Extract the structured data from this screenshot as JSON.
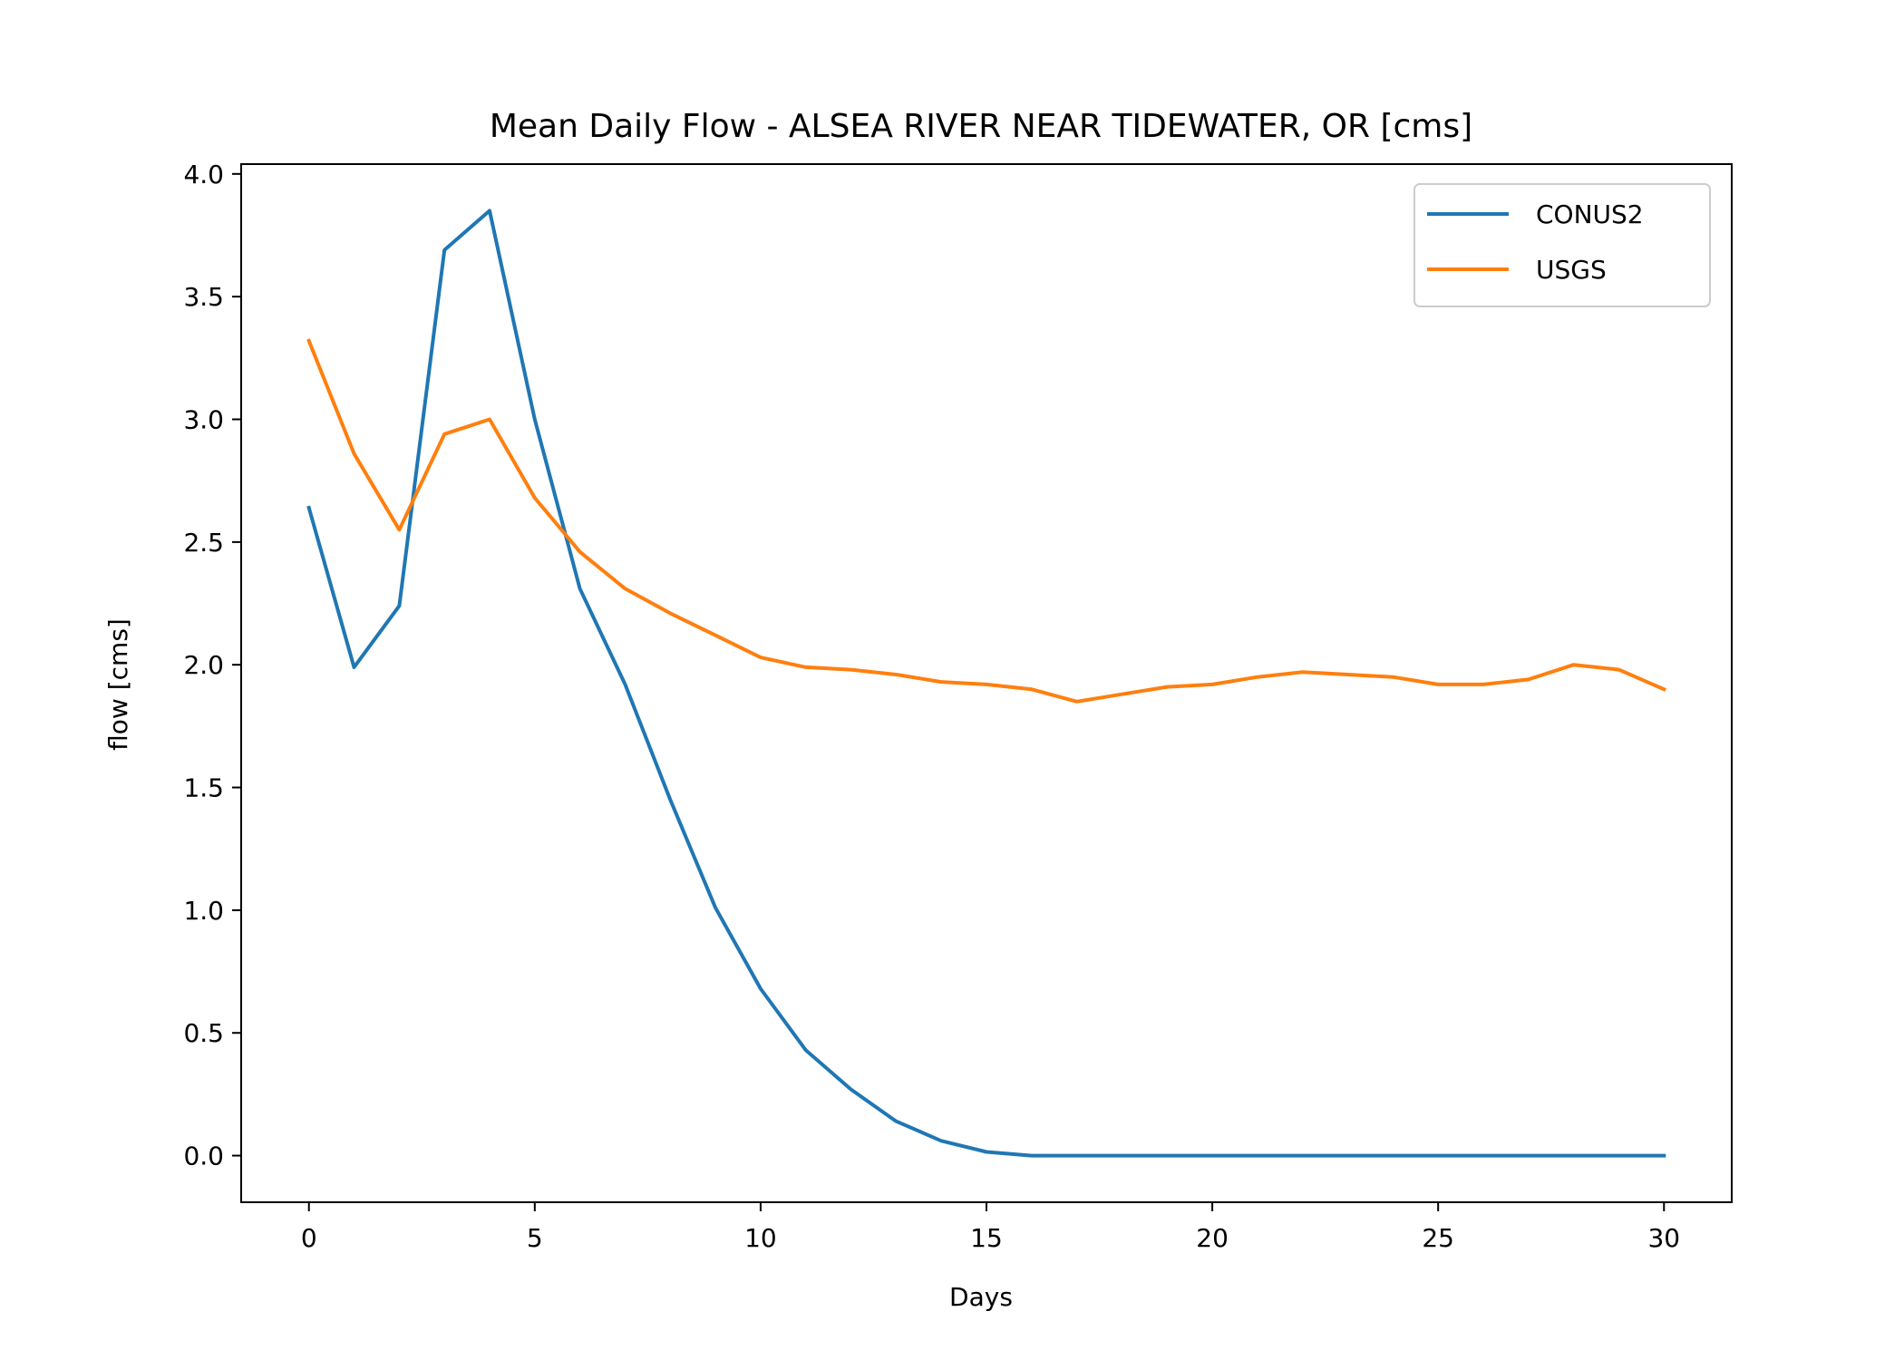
{
  "chart_data": {
    "type": "line",
    "title": "Mean Daily Flow - ALSEA RIVER NEAR TIDEWATER, OR [cms]",
    "xlabel": "Days",
    "ylabel": "flow [cms]",
    "xlim": [
      -1.5,
      31.5
    ],
    "ylim": [
      -0.19,
      4.04
    ],
    "xticks": [
      0,
      5,
      10,
      15,
      20,
      25,
      30
    ],
    "yticks": [
      0.0,
      0.5,
      1.0,
      1.5,
      2.0,
      2.5,
      3.0,
      3.5,
      4.0
    ],
    "xtick_labels": [
      "0",
      "5",
      "10",
      "15",
      "20",
      "25",
      "30"
    ],
    "ytick_labels": [
      "0.0",
      "0.5",
      "1.0",
      "1.5",
      "2.0",
      "2.5",
      "3.0",
      "3.5",
      "4.0"
    ],
    "grid": false,
    "legend_position": "top-right",
    "x": [
      0,
      1,
      2,
      3,
      4,
      5,
      6,
      7,
      8,
      9,
      10,
      11,
      12,
      13,
      14,
      15,
      16,
      17,
      18,
      19,
      20,
      21,
      22,
      23,
      24,
      25,
      26,
      27,
      28,
      29,
      30
    ],
    "series": [
      {
        "name": "CONUS2",
        "color": "#1f77b4",
        "values": [
          2.64,
          1.99,
          2.24,
          3.69,
          3.85,
          3.0,
          2.31,
          1.92,
          1.45,
          1.01,
          0.68,
          0.43,
          0.27,
          0.14,
          0.06,
          0.015,
          0.0,
          0.0,
          0.0,
          0.0,
          0.0,
          0.0,
          0.0,
          0.0,
          0.0,
          0.0,
          0.0,
          0.0,
          0.0,
          0.0,
          0.0
        ]
      },
      {
        "name": "USGS",
        "color": "#ff7f0e",
        "values": [
          3.32,
          2.86,
          2.55,
          2.94,
          3.0,
          2.68,
          2.46,
          2.31,
          2.21,
          2.12,
          2.03,
          1.99,
          1.98,
          1.96,
          1.93,
          1.92,
          1.9,
          1.85,
          1.88,
          1.91,
          1.92,
          1.95,
          1.97,
          1.96,
          1.95,
          1.92,
          1.92,
          1.94,
          2.0,
          1.98,
          1.9
        ]
      }
    ]
  }
}
